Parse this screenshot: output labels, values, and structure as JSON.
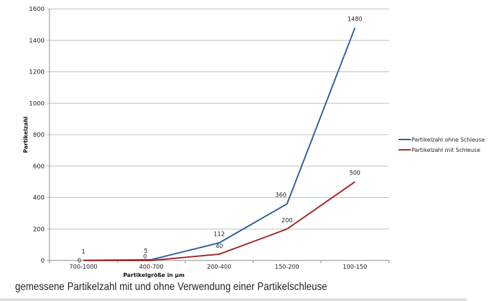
{
  "chart_data": {
    "type": "line",
    "title": "",
    "xlabel": "Partikelgröße in µm",
    "ylabel": "Partikelzahl",
    "categories": [
      "700-1000",
      "400-700",
      "200-400",
      "150-200",
      "100-150"
    ],
    "series": [
      {
        "name": "Partikelzahl ohne Schleuse",
        "color": "#2e5f9a",
        "values": [
          1,
          5,
          112,
          360,
          1480
        ]
      },
      {
        "name": "Partikelzahl mit Schleuse",
        "color": "#a3282b",
        "values": [
          0,
          0,
          40,
          200,
          500
        ]
      }
    ],
    "ylim": [
      0,
      1600
    ],
    "yticks": [
      0,
      200,
      400,
      600,
      800,
      1000,
      1200,
      1400,
      1600
    ],
    "grid": true,
    "legend_position": "right"
  },
  "caption": "gemessene Partikelzahl mit und ohne Verwendung einer Partikelschleuse"
}
